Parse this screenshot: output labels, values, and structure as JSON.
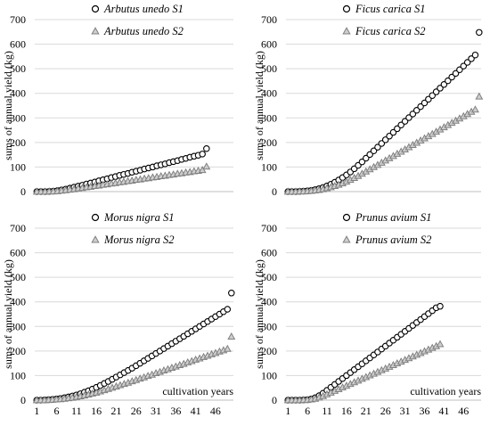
{
  "chart_data": [
    {
      "type": "scatter",
      "ylabel": "sums of annual yield (kg)",
      "xlabel": "",
      "ylim": [
        0,
        700
      ],
      "yticks": [
        0,
        100,
        200,
        300,
        400,
        500,
        600,
        700
      ],
      "xticks": [],
      "xlim": [
        1,
        50
      ],
      "grid": "horizontal",
      "legend": "top-right",
      "series": [
        {
          "name": "Arbutus unedo S1",
          "marker": "circle",
          "color": "#000000",
          "x": [
            1,
            2,
            3,
            4,
            5,
            6,
            7,
            8,
            9,
            10,
            11,
            12,
            13,
            14,
            15,
            16,
            17,
            18,
            19,
            20,
            21,
            22,
            23,
            24,
            25,
            26,
            27,
            28,
            29,
            30,
            31,
            32,
            33,
            34,
            35,
            36,
            37,
            38,
            39,
            40,
            41,
            42
          ],
          "y": [
            0,
            0,
            0,
            1,
            2,
            4,
            7,
            10,
            14,
            18,
            22,
            26,
            31,
            35,
            39,
            44,
            48,
            52,
            57,
            61,
            66,
            70,
            74,
            79,
            83,
            87,
            92,
            96,
            100,
            105,
            109,
            113,
            118,
            122,
            126,
            131,
            135,
            140,
            144,
            148,
            153,
            175
          ]
        },
        {
          "name": "Arbutus unedo S2",
          "marker": "triangle",
          "color": "#808080",
          "x": [
            1,
            2,
            3,
            4,
            5,
            6,
            7,
            8,
            9,
            10,
            11,
            12,
            13,
            14,
            15,
            16,
            17,
            18,
            19,
            20,
            21,
            22,
            23,
            24,
            25,
            26,
            27,
            28,
            29,
            30,
            31,
            32,
            33,
            34,
            35,
            36,
            37,
            38,
            39,
            40,
            41,
            42
          ],
          "y": [
            0,
            0,
            0,
            1,
            1,
            2,
            4,
            6,
            8,
            10,
            13,
            15,
            18,
            20,
            23,
            25,
            28,
            30,
            33,
            35,
            38,
            40,
            43,
            45,
            48,
            50,
            53,
            55,
            58,
            60,
            63,
            65,
            68,
            70,
            73,
            75,
            78,
            80,
            83,
            85,
            88,
            102
          ]
        }
      ]
    },
    {
      "type": "scatter",
      "ylabel": "sums of annual yield (kg)",
      "xlabel": "",
      "ylim": [
        0,
        700
      ],
      "yticks": [
        0,
        100,
        200,
        300,
        400,
        500,
        600,
        700
      ],
      "xticks": [],
      "xlim": [
        1,
        50
      ],
      "grid": "horizontal",
      "legend": "top-right",
      "series": [
        {
          "name": "Ficus carica S1",
          "marker": "circle",
          "color": "#000000",
          "x": [
            1,
            2,
            3,
            4,
            5,
            6,
            7,
            8,
            9,
            10,
            11,
            12,
            13,
            14,
            15,
            16,
            17,
            18,
            19,
            20,
            21,
            22,
            23,
            24,
            25,
            26,
            27,
            28,
            29,
            30,
            31,
            32,
            33,
            34,
            35,
            36,
            37,
            38,
            39,
            40,
            41,
            42,
            43,
            44,
            45,
            46,
            47,
            48,
            49,
            50
          ],
          "y": [
            0,
            0,
            0,
            1,
            2,
            3,
            5,
            8,
            12,
            17,
            23,
            30,
            38,
            47,
            57,
            68,
            80,
            93,
            107,
            121,
            136,
            151,
            166,
            181,
            196,
            211,
            226,
            241,
            256,
            271,
            286,
            301,
            316,
            331,
            346,
            361,
            376,
            391,
            406,
            421,
            436,
            451,
            466,
            481,
            496,
            511,
            526,
            541,
            556,
            648
          ]
        },
        {
          "name": "Ficus carica S2",
          "marker": "triangle",
          "color": "#808080",
          "x": [
            1,
            2,
            3,
            4,
            5,
            6,
            7,
            8,
            9,
            10,
            11,
            12,
            13,
            14,
            15,
            16,
            17,
            18,
            19,
            20,
            21,
            22,
            23,
            24,
            25,
            26,
            27,
            28,
            29,
            30,
            31,
            32,
            33,
            34,
            35,
            36,
            37,
            38,
            39,
            40,
            41,
            42,
            43,
            44,
            45,
            46,
            47,
            48,
            49,
            50
          ],
          "y": [
            0,
            0,
            0,
            1,
            1,
            2,
            3,
            5,
            7,
            10,
            14,
            18,
            23,
            28,
            34,
            41,
            48,
            56,
            64,
            73,
            82,
            91,
            100,
            109,
            118,
            127,
            136,
            145,
            154,
            163,
            172,
            181,
            190,
            199,
            208,
            217,
            226,
            235,
            244,
            253,
            262,
            271,
            280,
            289,
            298,
            307,
            316,
            325,
            334,
            387
          ]
        }
      ]
    },
    {
      "type": "scatter",
      "ylabel": "sums of annual yield (kg)",
      "xlabel": "cultivation years",
      "ylim": [
        0,
        700
      ],
      "yticks": [
        0,
        100,
        200,
        300,
        400,
        500,
        600,
        700
      ],
      "xticks": [
        1,
        6,
        11,
        16,
        21,
        26,
        31,
        36,
        41,
        46
      ],
      "xlim": [
        1,
        50
      ],
      "grid": "horizontal",
      "legend": "top-right",
      "series": [
        {
          "name": "Morus nigra S1",
          "marker": "circle",
          "color": "#000000",
          "x": [
            1,
            2,
            3,
            4,
            5,
            6,
            7,
            8,
            9,
            10,
            11,
            12,
            13,
            14,
            15,
            16,
            17,
            18,
            19,
            20,
            21,
            22,
            23,
            24,
            25,
            26,
            27,
            28,
            29,
            30,
            31,
            32,
            33,
            34,
            35,
            36,
            37,
            38,
            39,
            40,
            41,
            42,
            43,
            44,
            45,
            46,
            47,
            48,
            49,
            50
          ],
          "y": [
            0,
            0,
            1,
            2,
            3,
            5,
            7,
            10,
            13,
            17,
            21,
            26,
            32,
            38,
            45,
            52,
            60,
            68,
            76,
            85,
            94,
            103,
            112,
            121,
            130,
            140,
            150,
            160,
            170,
            180,
            190,
            200,
            210,
            220,
            230,
            240,
            250,
            260,
            270,
            280,
            290,
            300,
            310,
            320,
            330,
            340,
            350,
            360,
            370,
            436
          ]
        },
        {
          "name": "Morus nigra S2",
          "marker": "triangle",
          "color": "#808080",
          "x": [
            1,
            2,
            3,
            4,
            5,
            6,
            7,
            8,
            9,
            10,
            11,
            12,
            13,
            14,
            15,
            16,
            17,
            18,
            19,
            20,
            21,
            22,
            23,
            24,
            25,
            26,
            27,
            28,
            29,
            30,
            31,
            32,
            33,
            34,
            35,
            36,
            37,
            38,
            39,
            40,
            41,
            42,
            43,
            44,
            45,
            46,
            47,
            48,
            49,
            50
          ],
          "y": [
            0,
            0,
            0,
            1,
            2,
            3,
            4,
            6,
            8,
            10,
            13,
            16,
            19,
            23,
            27,
            31,
            36,
            41,
            46,
            51,
            56,
            61,
            66,
            71,
            77,
            82,
            88,
            93,
            99,
            104,
            110,
            115,
            121,
            126,
            132,
            137,
            143,
            148,
            154,
            159,
            165,
            170,
            176,
            181,
            187,
            192,
            198,
            203,
            209,
            259
          ]
        }
      ]
    },
    {
      "type": "scatter",
      "ylabel": "sums of annual yield (kg)",
      "xlabel": "cultivation years",
      "ylim": [
        0,
        700
      ],
      "yticks": [
        0,
        100,
        200,
        300,
        400,
        500,
        600,
        700
      ],
      "xticks": [
        1,
        6,
        11,
        16,
        21,
        26,
        31,
        36,
        41,
        46
      ],
      "xlim": [
        1,
        50
      ],
      "grid": "horizontal",
      "legend": "top-right",
      "series": [
        {
          "name": "Prunus avium S1",
          "marker": "circle",
          "color": "#000000",
          "x": [
            1,
            2,
            3,
            4,
            5,
            6,
            7,
            8,
            9,
            10,
            11,
            12,
            13,
            14,
            15,
            16,
            17,
            18,
            19,
            20,
            21,
            22,
            23,
            24,
            25,
            26,
            27,
            28,
            29,
            30,
            31,
            32,
            33,
            34,
            35,
            36,
            37,
            38,
            39,
            40
          ],
          "y": [
            0,
            0,
            0,
            0,
            1,
            2,
            5,
            10,
            18,
            28,
            40,
            52,
            64,
            76,
            88,
            100,
            112,
            124,
            136,
            148,
            160,
            172,
            184,
            196,
            208,
            220,
            232,
            244,
            256,
            268,
            280,
            292,
            304,
            316,
            328,
            340,
            352,
            364,
            376,
            382
          ]
        },
        {
          "name": "Prunus avium S2",
          "marker": "triangle",
          "color": "#808080",
          "x": [
            1,
            2,
            3,
            4,
            5,
            6,
            7,
            8,
            9,
            10,
            11,
            12,
            13,
            14,
            15,
            16,
            17,
            18,
            19,
            20,
            21,
            22,
            23,
            24,
            25,
            26,
            27,
            28,
            29,
            30,
            31,
            32,
            33,
            34,
            35,
            36,
            37,
            38,
            39,
            40
          ],
          "y": [
            0,
            0,
            0,
            0,
            1,
            1,
            3,
            6,
            11,
            17,
            24,
            31,
            38,
            45,
            52,
            59,
            66,
            73,
            80,
            87,
            94,
            101,
            108,
            115,
            122,
            129,
            136,
            143,
            150,
            157,
            164,
            171,
            178,
            185,
            192,
            199,
            206,
            213,
            220,
            228
          ]
        }
      ]
    }
  ]
}
